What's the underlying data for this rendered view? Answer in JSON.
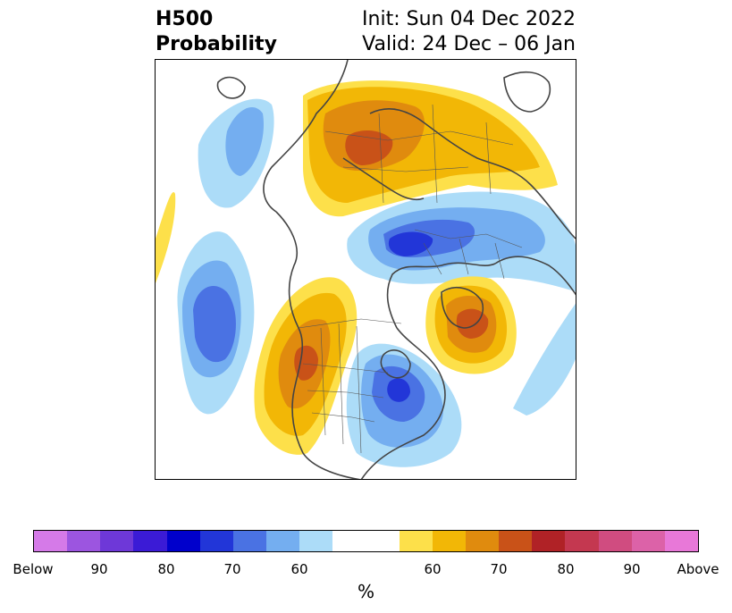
{
  "title": {
    "left_line1": "H500",
    "left_line2": "Probability",
    "init": "Init: Sun 04 Dec 2022",
    "valid": "Valid: 24 Dec – 06 Jan"
  },
  "colorbar": {
    "unit": "%",
    "below_colors": [
      "#d57ae8",
      "#9c55e0",
      "#6e38d8",
      "#3b1bd6",
      "#0000cc",
      "#2236d8",
      "#4a72e3",
      "#74aef0",
      "#acdcf8"
    ],
    "neutral_color": "#ffffff",
    "above_colors": [
      "#fde04a",
      "#f2b706",
      "#e08b0e",
      "#c95218",
      "#b02226",
      "#c43850",
      "#d04c80",
      "#dc62a8",
      "#e878d8"
    ],
    "tick_labels": [
      "Below",
      "90",
      "80",
      "70",
      "60",
      "60",
      "70",
      "80",
      "90",
      "Above"
    ]
  }
}
